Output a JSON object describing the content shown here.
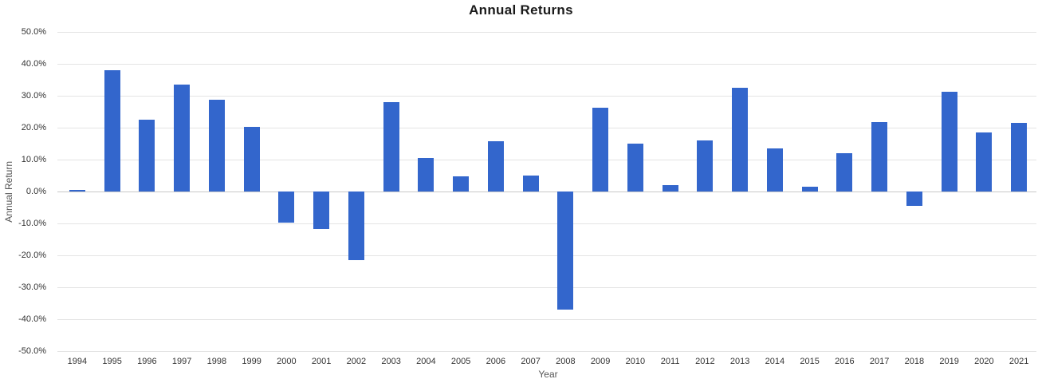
{
  "title": "Annual Returns",
  "colors": {
    "bar": "#3366CC",
    "grid": "#E4E4E4",
    "baseline": "#C9C9C9",
    "title_text": "#1a1a1a",
    "tick_text": "#333333",
    "axis_title_text": "#555555",
    "background": "#FFFFFF"
  },
  "chart_data": {
    "type": "bar",
    "title": "Annual Returns",
    "xlabel": "Year",
    "ylabel": "Annual Return",
    "categories": [
      "1994",
      "1995",
      "1996",
      "1997",
      "1998",
      "1999",
      "2000",
      "2001",
      "2002",
      "2003",
      "2004",
      "2005",
      "2006",
      "2007",
      "2008",
      "2009",
      "2010",
      "2011",
      "2012",
      "2013",
      "2014",
      "2015",
      "2016",
      "2017",
      "2018",
      "2019",
      "2020",
      "2021"
    ],
    "values": [
      0.4,
      38.0,
      22.5,
      33.5,
      28.7,
      20.3,
      -9.7,
      -11.8,
      -21.5,
      28.1,
      10.5,
      4.8,
      15.8,
      5.0,
      -36.9,
      26.3,
      15.0,
      1.9,
      16.1,
      32.4,
      13.4,
      1.4,
      12.0,
      21.8,
      -4.5,
      31.3,
      18.4,
      21.6
    ],
    "value_unit": "percent",
    "ylim": [
      -50,
      50
    ],
    "ytick_step": 10,
    "ytick_labels": [
      "50.0%",
      "40.0%",
      "30.0%",
      "20.0%",
      "10.0%",
      "0.0%",
      "-10.0%",
      "-20.0%",
      "-30.0%",
      "-40.0%",
      "-50.0%"
    ],
    "grid": true,
    "legend": "none",
    "bar_color": "#3366CC"
  }
}
